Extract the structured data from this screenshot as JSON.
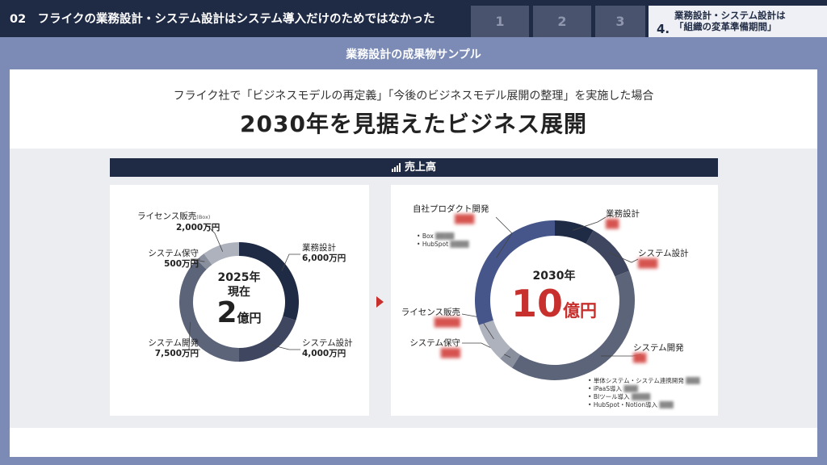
{
  "header": {
    "title": "02　フライクの業務設計・システム設計はシステム導入だけのためではなかった",
    "steps": [
      "1",
      "2",
      "3"
    ],
    "active_step": {
      "number": "4.",
      "line1": "業務設計・システム設計は",
      "line2": "「組織の変革準備期間」"
    }
  },
  "section_title": "業務設計の成果物サンプル",
  "lead": "フライク社で「ビジネスモデルの再定義」「今後のビジネスモデル展開の整理」を実施した場合",
  "headline": "2030年を見据えたビジネス展開",
  "sales_label": "売上高",
  "chart_data": [
    {
      "type": "pie",
      "center": {
        "year": "2025年",
        "sub": "現在",
        "value": "2",
        "unit": "億円"
      },
      "categories": [
        "業務設計",
        "システム設計",
        "システム開発",
        "システム保守",
        "ライセンス販売"
      ],
      "values": [
        6000,
        4000,
        7500,
        500,
        2000
      ],
      "value_labels": [
        "6,000万円",
        "4,000万円",
        "7,500万円",
        "500万円",
        "2,000万円"
      ],
      "label_notes": {
        "ライセンス販売": "(Box)"
      },
      "colors": [
        "#1f2a44",
        "#3f4660",
        "#5c6479",
        "#8a8f9e",
        "#aeb2bd"
      ]
    },
    {
      "type": "pie",
      "center": {
        "year": "2030年",
        "value": "10",
        "unit": "億円"
      },
      "categories": [
        "業務設計",
        "システム設計",
        "システム開発",
        "システム保守",
        "ライセンス販売",
        "自社プロダクト開発"
      ],
      "values": [
        8,
        11,
        40,
        3,
        8,
        30
      ],
      "colors": [
        "#1f2a44",
        "#3f4660",
        "#5c6479",
        "#8a8f9e",
        "#aeb2bd",
        "#46568a"
      ],
      "notes": {
        "自社プロダクト開発": [
          "Box",
          "HubSpot"
        ],
        "システム開発": [
          "単体システム・システム連携開発",
          "iPaaS導入",
          "BIツール導入",
          "HubSpot・Notion導入"
        ]
      }
    }
  ],
  "colors": {
    "navy": "#1f2a44",
    "accent_red": "#c7302c",
    "band": "#7b8bb6"
  }
}
